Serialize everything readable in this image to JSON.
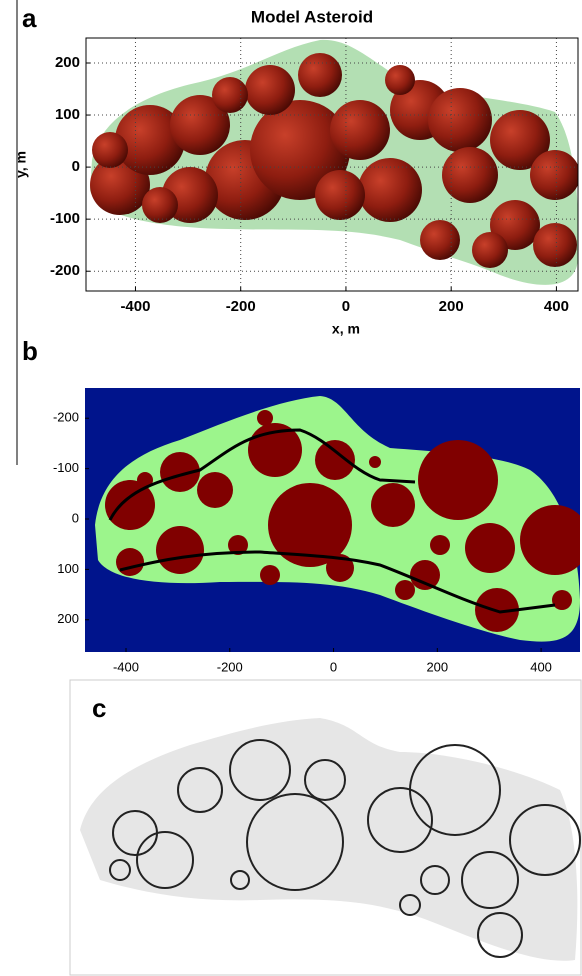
{
  "chart_data": [
    {
      "type": "image",
      "panel_label": "a",
      "title": "Model Asteroid",
      "x_label": "x, m",
      "y_label": "y, m",
      "xlim": [
        -494,
        441
      ],
      "ylim": [
        -238,
        248
      ],
      "xticks": [
        -400,
        -200,
        0,
        200,
        400
      ],
      "yticks": [
        -200,
        -100,
        0,
        100,
        200
      ],
      "grid": true
    },
    {
      "type": "image",
      "panel_label": "b",
      "xlim": [
        -479,
        475
      ],
      "ylim": [
        264,
        -260
      ],
      "xticks": [
        -400,
        -200,
        0,
        200,
        400
      ],
      "yticks": [
        -200,
        -100,
        0,
        100,
        200
      ],
      "grid": false
    }
  ],
  "panel_c": {
    "panel_label": "c"
  }
}
